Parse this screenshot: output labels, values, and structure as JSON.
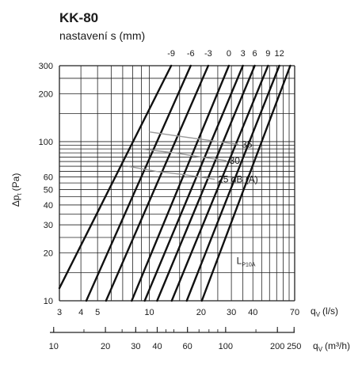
{
  "chart_data": {
    "type": "line",
    "title": "KK-80",
    "subtitle": "nastavení s (mm)",
    "x_scale": "log",
    "y_scale": "log",
    "xlim": [
      3,
      70
    ],
    "ylim": [
      10,
      300
    ],
    "grid": true,
    "xlabel": "q",
    "xlabel_sub": "V",
    "xlabel_unit": "(l/s)",
    "x2label": "q",
    "x2label_sub": "V",
    "x2label_unit": "(m³/h)",
    "ylabel": "Δp",
    "ylabel_sub": "t",
    "ylabel_unit": "(Pa)",
    "x_ticks": [
      3,
      4,
      5,
      10,
      20,
      30,
      40,
      70
    ],
    "x_tick_labels": [
      "3",
      "4",
      "5",
      "10",
      "20",
      "30",
      "40",
      "70"
    ],
    "x2_ticks": [
      10,
      20,
      30,
      40,
      60,
      100,
      200,
      250
    ],
    "x2_tick_labels": [
      "10",
      "20",
      "30",
      "40",
      "60",
      "100",
      "200",
      "250"
    ],
    "y_ticks": [
      10,
      20,
      30,
      40,
      50,
      60,
      100,
      200,
      300
    ],
    "y_tick_labels": [
      "10",
      "20",
      "30",
      "40",
      "50",
      "60",
      "100",
      "200",
      "300"
    ],
    "series": [
      {
        "name": "-9",
        "x": [
          3,
          13.4
        ],
        "y": [
          12,
          300
        ]
      },
      {
        "name": "-6",
        "x": [
          4.3,
          17.4
        ],
        "y": [
          10,
          300
        ]
      },
      {
        "name": "-3",
        "x": [
          5.6,
          22
        ],
        "y": [
          10,
          300
        ]
      },
      {
        "name": "0",
        "x": [
          7.9,
          29
        ],
        "y": [
          10,
          300
        ]
      },
      {
        "name": "3",
        "x": [
          9.4,
          35
        ],
        "y": [
          10,
          300
        ]
      },
      {
        "name": "6",
        "x": [
          11.1,
          41
        ],
        "y": [
          10,
          300
        ]
      },
      {
        "name": "9",
        "x": [
          13.5,
          49
        ],
        "y": [
          10,
          300
        ]
      },
      {
        "name": "12",
        "x": [
          16.5,
          57
        ],
        "y": [
          10,
          300
        ]
      },
      {
        "name": "",
        "x": [
          20.2,
          66
        ],
        "y": [
          10,
          300
        ]
      }
    ],
    "noise_curves": [
      {
        "label": "35",
        "x": [
          10,
          15,
          22,
          33
        ],
        "y": [
          115,
          108,
          102,
          96
        ]
      },
      {
        "label": "30",
        "x": [
          9,
          14,
          20,
          28
        ],
        "y": [
          90,
          85,
          80,
          76
        ]
      },
      {
        "label": "25 dB (A)",
        "x": [
          7.5,
          11,
          16,
          24
        ],
        "y": [
          70,
          65,
          62,
          58
        ]
      }
    ],
    "annotation": {
      "text": "L",
      "sub": "P10A",
      "x": 35,
      "y": 17
    }
  }
}
